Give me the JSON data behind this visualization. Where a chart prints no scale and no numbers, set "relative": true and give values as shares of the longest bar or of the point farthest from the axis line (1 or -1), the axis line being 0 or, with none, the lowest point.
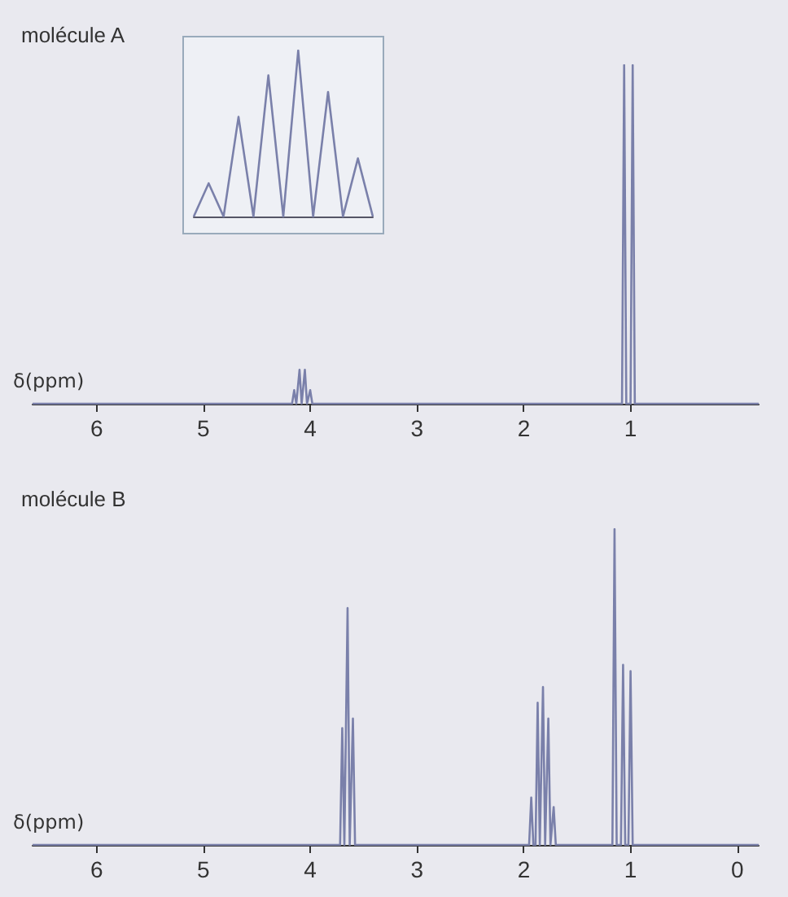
{
  "chart_data": [
    {
      "type": "line",
      "title": "molécule A",
      "xlabel": "δ(ppm)",
      "relative": true,
      "color": "#7a80aa",
      "xlim": [
        6.6,
        -0.2
      ],
      "xticks": [
        6,
        5,
        4,
        3,
        2,
        1
      ],
      "grid": false,
      "marker": "none",
      "x": [
        6.6,
        4.17,
        4.15,
        4.13,
        4.12,
        4.1,
        4.08,
        4.07,
        4.05,
        4.03,
        4.02,
        4.0,
        3.98,
        1.08,
        1.06,
        1.04,
        1.0,
        0.98,
        0.96,
        -0.2
      ],
      "values": [
        0,
        0,
        0.04,
        0,
        0,
        0.1,
        0,
        0,
        0.1,
        0,
        0,
        0.04,
        0,
        0,
        1,
        0,
        0,
        1,
        0,
        0
      ]
    },
    {
      "type": "line",
      "relative": true,
      "color": "#7a80aa",
      "grid": false,
      "marker": "none",
      "categories": [
        null,
        null,
        null,
        null,
        null,
        null,
        null,
        null,
        null,
        null,
        null,
        null,
        null
      ],
      "values": [
        0,
        0.2,
        0,
        0.6,
        0,
        0.85,
        0,
        1,
        0,
        0.75,
        0,
        0.35,
        0
      ]
    },
    {
      "type": "line",
      "title": "molécule B",
      "xlabel": "δ(ppm)",
      "relative": true,
      "color": "#7a80aa",
      "xlim": [
        6.6,
        -0.2
      ],
      "xticks": [
        6,
        5,
        4,
        3,
        2,
        1,
        0
      ],
      "grid": false,
      "marker": "none",
      "x": [
        6.6,
        3.72,
        3.7,
        3.68,
        3.67,
        3.65,
        3.63,
        3.62,
        3.6,
        3.58,
        1.95,
        1.93,
        1.91,
        1.89,
        1.87,
        1.85,
        1.84,
        1.82,
        1.8,
        1.79,
        1.77,
        1.75,
        1.74,
        1.72,
        1.7,
        1.17,
        1.15,
        1.13,
        1.09,
        1.07,
        1.05,
        1.02,
        1.0,
        0.98,
        -0.2
      ],
      "values": [
        0,
        0,
        0.37,
        0,
        0,
        0.75,
        0,
        0,
        0.4,
        0,
        0,
        0.15,
        0,
        0,
        0.45,
        0,
        0,
        0.5,
        0,
        0,
        0.4,
        0,
        0,
        0.12,
        0,
        0,
        1,
        0,
        0,
        0.57,
        0,
        0,
        0.55,
        0,
        0
      ]
    }
  ]
}
